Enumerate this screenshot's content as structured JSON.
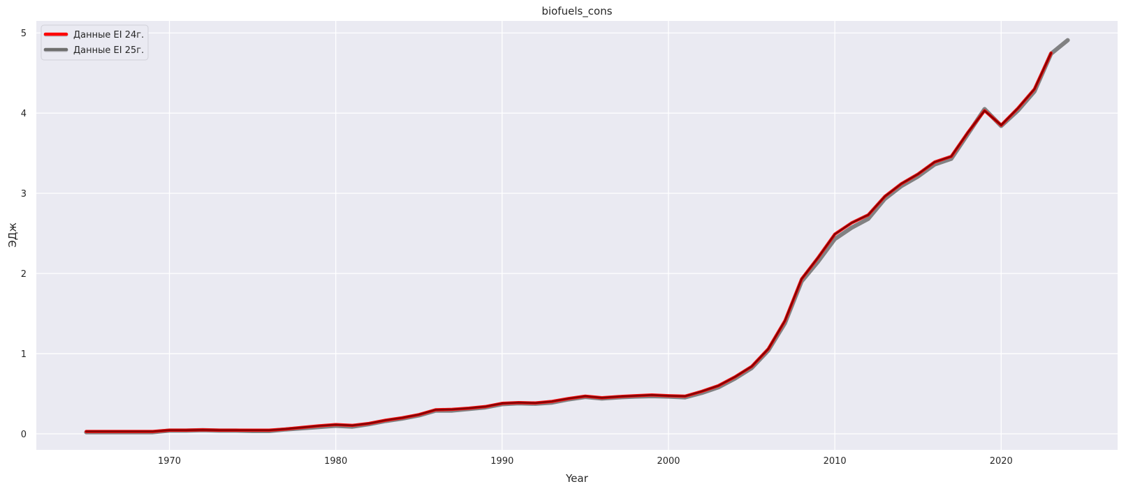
{
  "chart_data": {
    "type": "line",
    "title": "biofuels_cons",
    "xlabel": "Year",
    "ylabel": "ЭДж",
    "xlim": [
      1962,
      2027
    ],
    "ylim": [
      -0.2,
      5.15
    ],
    "xticks": [
      1970,
      1980,
      1990,
      2000,
      2010,
      2020
    ],
    "yticks": [
      0,
      1,
      2,
      3,
      4,
      5
    ],
    "grid": true,
    "legend_position": "top-left",
    "background_color": "#eaeaf2",
    "series": [
      {
        "name": "Данные EI 25г.",
        "color": "#6e6e6e",
        "x": [
          1965,
          1966,
          1967,
          1968,
          1969,
          1970,
          1971,
          1972,
          1973,
          1974,
          1975,
          1976,
          1977,
          1978,
          1979,
          1980,
          1981,
          1982,
          1983,
          1984,
          1985,
          1986,
          1987,
          1988,
          1989,
          1990,
          1991,
          1992,
          1993,
          1994,
          1995,
          1996,
          1997,
          1998,
          1999,
          2000,
          2001,
          2002,
          2003,
          2004,
          2005,
          2006,
          2007,
          2008,
          2009,
          2010,
          2011,
          2012,
          2013,
          2014,
          2015,
          2016,
          2017,
          2018,
          2019,
          2020,
          2021,
          2022,
          2023,
          2024
        ],
        "values": [
          0.02,
          0.02,
          0.02,
          0.02,
          0.02,
          0.04,
          0.04,
          0.045,
          0.04,
          0.04,
          0.035,
          0.035,
          0.055,
          0.07,
          0.085,
          0.1,
          0.09,
          0.12,
          0.16,
          0.19,
          0.23,
          0.29,
          0.29,
          0.31,
          0.33,
          0.37,
          0.38,
          0.375,
          0.39,
          0.43,
          0.46,
          0.44,
          0.455,
          0.465,
          0.47,
          0.465,
          0.455,
          0.51,
          0.58,
          0.69,
          0.82,
          1.04,
          1.38,
          1.9,
          2.15,
          2.43,
          2.57,
          2.68,
          2.93,
          3.09,
          3.21,
          3.36,
          3.43,
          3.74,
          4.05,
          3.84,
          4.03,
          4.27,
          4.74,
          4.91
        ]
      },
      {
        "name": "Данные EI 24г.",
        "color": "#ff0000",
        "x": [
          1965,
          1966,
          1967,
          1968,
          1969,
          1970,
          1971,
          1972,
          1973,
          1974,
          1975,
          1976,
          1977,
          1978,
          1979,
          1980,
          1981,
          1982,
          1983,
          1984,
          1985,
          1986,
          1987,
          1988,
          1989,
          1990,
          1991,
          1992,
          1993,
          1994,
          1995,
          1996,
          1997,
          1998,
          1999,
          2000,
          2001,
          2002,
          2003,
          2004,
          2005,
          2006,
          2007,
          2008,
          2009,
          2010,
          2011,
          2012,
          2013,
          2014,
          2015,
          2016,
          2017,
          2018,
          2019,
          2020,
          2021,
          2022,
          2023
        ],
        "values": [
          0.03,
          0.03,
          0.03,
          0.03,
          0.03,
          0.045,
          0.045,
          0.05,
          0.045,
          0.045,
          0.045,
          0.045,
          0.06,
          0.08,
          0.1,
          0.115,
          0.105,
          0.13,
          0.17,
          0.2,
          0.24,
          0.3,
          0.305,
          0.32,
          0.34,
          0.38,
          0.39,
          0.385,
          0.405,
          0.44,
          0.47,
          0.45,
          0.465,
          0.475,
          0.485,
          0.475,
          0.47,
          0.53,
          0.6,
          0.71,
          0.84,
          1.06,
          1.41,
          1.93,
          2.2,
          2.49,
          2.63,
          2.73,
          2.96,
          3.12,
          3.24,
          3.39,
          3.46,
          3.76,
          4.03,
          3.85,
          4.06,
          4.3,
          4.75
        ]
      }
    ],
    "overlap_color": "#7a0000"
  }
}
